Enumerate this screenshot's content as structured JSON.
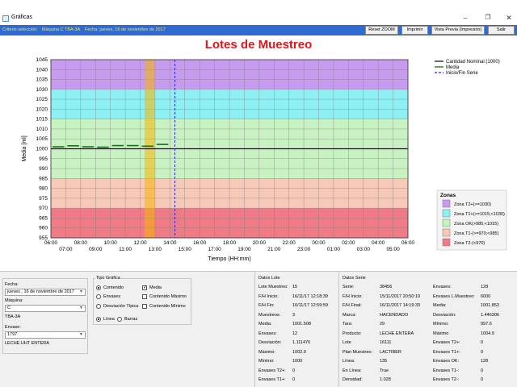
{
  "window": {
    "title": "Gráficas"
  },
  "toolbar": {
    "criteria": "Criterio selección:",
    "machine": "Máquina C TBA-3A",
    "date": "Fecha: jueves, 16 de noviembre de 2017",
    "buttons": [
      "Reset ZOOM",
      "Imprimir",
      "Vista Previa (Impresión)",
      "Salir"
    ]
  },
  "colors": {
    "toolbar": "#2f6bd0",
    "criteria_text": "#ffe24a",
    "title": "#e4141b"
  },
  "chart_data": {
    "type": "line",
    "title": "Lotes de Muestreo",
    "ylabel": "Media [ml]",
    "xlabel": "Tiempo (HH:mm)",
    "ylim": [
      955,
      1045
    ],
    "yticks": [
      955,
      960,
      965,
      970,
      975,
      980,
      985,
      990,
      995,
      1000,
      1005,
      1010,
      1015,
      1020,
      1025,
      1030,
      1035,
      1040,
      1045
    ],
    "xticks_top": [
      "06:00",
      "08:00",
      "10:00",
      "12:00",
      "14:00",
      "16:00",
      "18:00",
      "20:00",
      "22:00",
      "00:00",
      "02:00",
      "04:00",
      "06:00"
    ],
    "xticks_bottom": [
      "07:00",
      "09:00",
      "11:00",
      "13:00",
      "15:00",
      "17:00",
      "19:00",
      "21:00",
      "23:00",
      "01:00",
      "03:00",
      "05:00"
    ],
    "nominal": 1000,
    "legend": [
      "Cantidad Nominal (1000)",
      "Media",
      "Inicio/Fin Serie"
    ],
    "zones_title": "Zonas",
    "zones": [
      {
        "name": "Zona T2+(>=1030)",
        "from": 1030,
        "to": 1045,
        "color": "#c79cf0"
      },
      {
        "name": "Zona T1+(>=1015;<1030)",
        "from": 1015,
        "to": 1030,
        "color": "#8ff0f3"
      },
      {
        "name": "Zona OK(>985;<1015)",
        "from": 985,
        "to": 1015,
        "color": "#c9f2c2"
      },
      {
        "name": "Zona T1-(>=970;<985)",
        "from": 970,
        "to": 985,
        "color": "#f7c9b8"
      },
      {
        "name": "Zona T2-(<970)",
        "from": 955,
        "to": 970,
        "color": "#f07b86"
      }
    ],
    "media_series": [
      {
        "x": [
          "06:00",
          "07:00"
        ],
        "y": 1001.0
      },
      {
        "x": [
          "07:00",
          "08:00"
        ],
        "y": 1001.5
      },
      {
        "x": [
          "08:00",
          "09:00"
        ],
        "y": 1001.0
      },
      {
        "x": [
          "09:00",
          "10:00"
        ],
        "y": 1000.8
      },
      {
        "x": [
          "10:00",
          "11:00"
        ],
        "y": 1001.6
      },
      {
        "x": [
          "11:00",
          "12:00"
        ],
        "y": 1001.6
      },
      {
        "x": [
          "12:00",
          "13:00"
        ],
        "y": 1001.3
      },
      {
        "x": [
          "13:00",
          "14:00"
        ],
        "y": 1002.2
      }
    ],
    "serie_start": "14:20"
  },
  "left": {
    "fecha_label": "Fecha:",
    "fecha_value": "jueves , 16 de noviembre de 2017",
    "maquina_label": "Máquina:",
    "maquina_value": "C",
    "maquina_code": "TBA-3A",
    "envase_label": "Envase:",
    "envase_value": "1797",
    "producto": "LECHE UHT ENTERA"
  },
  "tipo": {
    "title": "Tipo Gráfica",
    "radios": [
      "Contenido",
      "Envases",
      "Desviación Típica"
    ],
    "checks": [
      "Media",
      "Contenido Máximo",
      "Contenido Mínimo"
    ],
    "style": [
      "Línea",
      "Barras"
    ]
  },
  "lote": {
    "title": "Datos Lote",
    "rows": [
      [
        "Lote Muestreo:",
        "15"
      ],
      [
        "F/H Inicio:",
        "16/11/17 12:18:39"
      ],
      [
        "F/H Fin:",
        "16/11/17 12:59:59"
      ],
      [
        "Muestreos:",
        "3"
      ],
      [
        "Media:",
        "1001.508"
      ],
      [
        "Envases:",
        "12"
      ],
      [
        "Desviación:",
        "1.111476"
      ],
      [
        "Máximo:",
        "1002.9"
      ],
      [
        "Mínimo:",
        "1000"
      ],
      [
        "Envases T2+:",
        "0"
      ],
      [
        "Envases T1+:",
        "0"
      ]
    ]
  },
  "serie": {
    "title": "Datos Serie",
    "rows": [
      [
        "Serie:",
        "38456"
      ],
      [
        "F/H Inicio:",
        "15/11/2017 20:50:19"
      ],
      [
        "F/H Final:",
        "16/11/2017 14:19:33"
      ],
      [
        "Marca:",
        "HACENDADO"
      ],
      [
        "Tara:",
        "29"
      ],
      [
        "Producto:",
        "LECHE ENTERA"
      ],
      [
        "Lote",
        "16111"
      ],
      [
        "Plan Muestreo:",
        "LACTIBER"
      ],
      [
        "Línea:",
        "135"
      ],
      [
        "En Línea:",
        "True"
      ],
      [
        "Densidad:",
        "1.028"
      ]
    ],
    "rows2": [
      [
        "Envases:",
        "128"
      ],
      [
        "Envases L.Muestreo:",
        "6000"
      ],
      [
        "Media:",
        "1001.853"
      ],
      [
        "Desviación:",
        "1.446306"
      ],
      [
        "Mínimo:",
        "997.6"
      ],
      [
        "Máximo",
        "1004.9"
      ],
      [
        "Envases T2+:",
        "0"
      ],
      [
        "Envases T1+:",
        "0"
      ],
      [
        "Envases OK:",
        "128"
      ],
      [
        "Envases T1-:",
        "0"
      ],
      [
        "Envases T2-:",
        "0"
      ]
    ]
  }
}
